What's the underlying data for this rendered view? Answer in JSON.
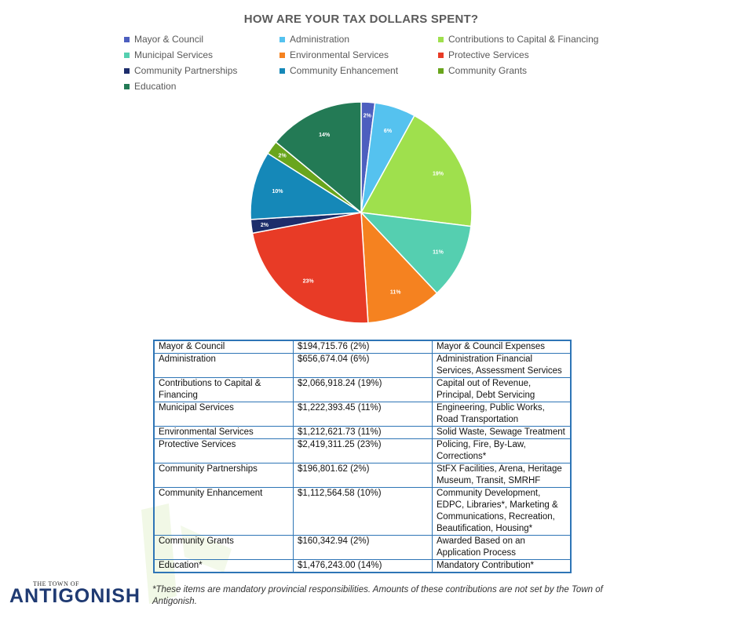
{
  "chart_data": {
    "type": "pie",
    "title": "HOW ARE YOUR TAX DOLLARS SPENT?",
    "legend_position": "top",
    "slices": [
      {
        "label": "Mayor & Council",
        "percent": 2,
        "value_label": "2%",
        "color": "#4d5fbf"
      },
      {
        "label": "Administration",
        "percent": 6,
        "value_label": "6%",
        "color": "#55c2ef"
      },
      {
        "label": "Contributions to Capital & Financing",
        "percent": 19,
        "value_label": "19%",
        "color": "#9fe04d"
      },
      {
        "label": "Municipal Services",
        "percent": 11,
        "value_label": "11%",
        "color": "#55cfb0"
      },
      {
        "label": "Environmental Services",
        "percent": 11,
        "value_label": "11%",
        "color": "#f58220"
      },
      {
        "label": "Protective Services",
        "percent": 23,
        "value_label": "23%",
        "color": "#e83b26"
      },
      {
        "label": "Community Partnerships",
        "percent": 2,
        "value_label": "2%",
        "color": "#1d2d6b"
      },
      {
        "label": "Community Enhancement",
        "percent": 10,
        "value_label": "10%",
        "color": "#1588b8"
      },
      {
        "label": "Community Grants",
        "percent": 2,
        "value_label": "2%",
        "color": "#69a51c"
      },
      {
        "label": "Education",
        "percent": 14,
        "value_label": "14%",
        "color": "#237a55"
      }
    ]
  },
  "table": {
    "rows": [
      {
        "category": "Mayor & Council",
        "amount": "$194,715.76 (2%)",
        "description": "Mayor & Council Expenses"
      },
      {
        "category": "Administration",
        "amount": "$656,674.04 (6%)",
        "description": "Administration Financial Services, Assessment Services"
      },
      {
        "category": "Contributions to Capital & Financing",
        "amount": "$2,066,918.24 (19%)",
        "description": "Capital out of Revenue, Principal, Debt Servicing"
      },
      {
        "category": "Municipal Services",
        "amount": "$1,222,393.45 (11%)",
        "description": "Engineering, Public Works, Road Transportation"
      },
      {
        "category": "Environmental Services",
        "amount": "$1,212,621.73 (11%)",
        "description": "Solid Waste, Sewage Treatment"
      },
      {
        "category": "Protective Services",
        "amount": "$2,419,311.25 (23%)",
        "description": "Policing, Fire, By-Law, Corrections*"
      },
      {
        "category": "Community Partnerships",
        "amount": "$196,801.62 (2%)",
        "description": "StFX Facilities, Arena, Heritage Museum, Transit, SMRHF"
      },
      {
        "category": "Community Enhancement",
        "amount": "$1,112,564.58 (10%)",
        "description": "Community Development, EDPC, Libraries*, Marketing & Communications, Recreation, Beautification, Housing*"
      },
      {
        "category": "Community Grants",
        "amount": "$160,342.94 (2%)",
        "description": "Awarded Based on an Application Process"
      },
      {
        "category": "Education*",
        "amount": "$1,476,243.00 (14%)",
        "description": "Mandatory Contribution*"
      }
    ]
  },
  "footnote": "*These items are mandatory provincial responsibilities. Amounts of these contributions are not set by the Town of Antigonish.",
  "logo": {
    "top_text": "THE TOWN OF",
    "main_text": "ANTIGONISH",
    "accent_color": "#8cc63f",
    "brand_color": "#1f3a72"
  }
}
